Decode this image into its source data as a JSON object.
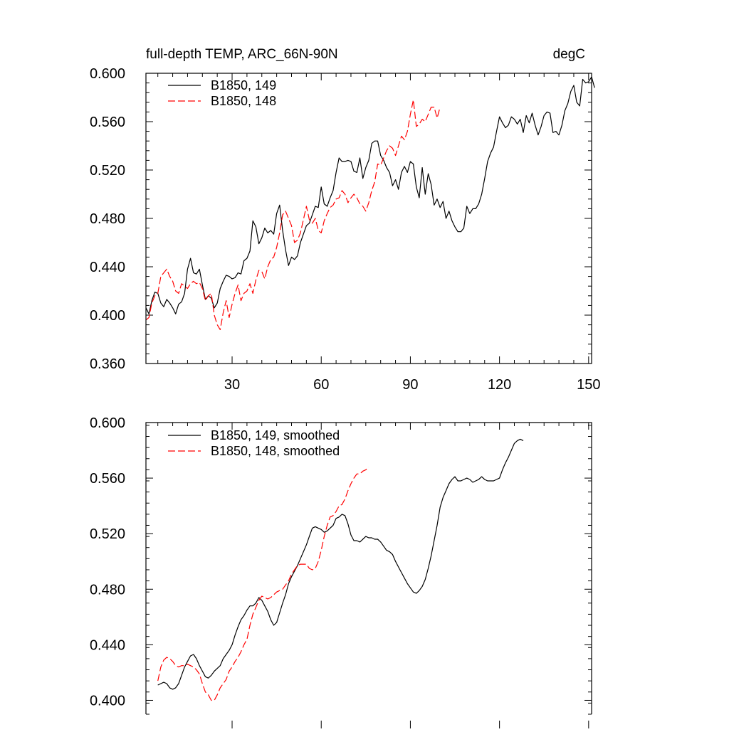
{
  "chart_data": [
    {
      "type": "line",
      "title": "full-depth TEMP, ARC_66N-90N",
      "units": "degC",
      "xlabel": "",
      "ylabel": "",
      "xlim": [
        1,
        151
      ],
      "ylim": [
        0.36,
        0.6
      ],
      "x_tick_labels": [
        "30",
        "60",
        "90",
        "120",
        "150"
      ],
      "y_tick_labels": [
        "0.360",
        "0.400",
        "0.440",
        "0.480",
        "0.520",
        "0.560",
        "0.600"
      ],
      "grid": false,
      "legend_position": "top-left",
      "series": [
        {
          "name": "B1850, 149",
          "color": "#000000",
          "style": "solid",
          "x_start": 1,
          "values": [
            0.406,
            0.401,
            0.412,
            0.419,
            0.418,
            0.41,
            0.407,
            0.413,
            0.41,
            0.406,
            0.401,
            0.409,
            0.411,
            0.418,
            0.438,
            0.447,
            0.435,
            0.434,
            0.438,
            0.425,
            0.413,
            0.416,
            0.414,
            0.406,
            0.41,
            0.422,
            0.428,
            0.433,
            0.432,
            0.43,
            0.431,
            0.435,
            0.434,
            0.445,
            0.447,
            0.453,
            0.478,
            0.473,
            0.459,
            0.464,
            0.472,
            0.468,
            0.47,
            0.467,
            0.484,
            0.491,
            0.47,
            0.454,
            0.441,
            0.448,
            0.446,
            0.449,
            0.46,
            0.467,
            0.474,
            0.476,
            0.483,
            0.49,
            0.489,
            0.506,
            0.492,
            0.49,
            0.497,
            0.503,
            0.518,
            0.53,
            0.527,
            0.527,
            0.528,
            0.527,
            0.519,
            0.518,
            0.53,
            0.513,
            0.522,
            0.528,
            0.542,
            0.544,
            0.544,
            0.532,
            0.528,
            0.522,
            0.518,
            0.507,
            0.512,
            0.504,
            0.518,
            0.523,
            0.518,
            0.527,
            0.525,
            0.506,
            0.497,
            0.522,
            0.5,
            0.517,
            0.508,
            0.491,
            0.496,
            0.489,
            0.494,
            0.48,
            0.486,
            0.478,
            0.473,
            0.469,
            0.469,
            0.472,
            0.49,
            0.484,
            0.488,
            0.488,
            0.492,
            0.5,
            0.513,
            0.527,
            0.534,
            0.539,
            0.552,
            0.564,
            0.559,
            0.555,
            0.557,
            0.564,
            0.562,
            0.558,
            0.562,
            0.551,
            0.565,
            0.559,
            0.567,
            0.557,
            0.549,
            0.556,
            0.565,
            0.568,
            0.567,
            0.551,
            0.552,
            0.549,
            0.557,
            0.569,
            0.575,
            0.585,
            0.59,
            0.576,
            0.573,
            0.595,
            0.592,
            0.593,
            0.597,
            0.588
          ]
        },
        {
          "name": "B1850, 148",
          "color": "#ff0000",
          "style": "dashed",
          "x_start": 1,
          "values": [
            0.396,
            0.398,
            0.41,
            0.416,
            0.418,
            0.432,
            0.435,
            0.438,
            0.432,
            0.428,
            0.42,
            0.418,
            0.426,
            0.424,
            0.422,
            0.426,
            0.428,
            0.426,
            0.427,
            0.422,
            0.412,
            0.416,
            0.418,
            0.4,
            0.392,
            0.388,
            0.402,
            0.412,
            0.398,
            0.409,
            0.418,
            0.425,
            0.412,
            0.418,
            0.42,
            0.426,
            0.418,
            0.429,
            0.437,
            0.436,
            0.43,
            0.44,
            0.446,
            0.448,
            0.456,
            0.468,
            0.483,
            0.486,
            0.48,
            0.474,
            0.46,
            0.462,
            0.468,
            0.479,
            0.49,
            0.479,
            0.476,
            0.48,
            0.47,
            0.468,
            0.478,
            0.484,
            0.489,
            0.491,
            0.496,
            0.497,
            0.503,
            0.5,
            0.493,
            0.497,
            0.5,
            0.497,
            0.492,
            0.49,
            0.486,
            0.493,
            0.503,
            0.51,
            0.525,
            0.524,
            0.53,
            0.536,
            0.54,
            0.538,
            0.532,
            0.54,
            0.548,
            0.545,
            0.552,
            0.566,
            0.578,
            0.556,
            0.558,
            0.562,
            0.56,
            0.566,
            0.572,
            0.572,
            0.563,
            0.572
          ]
        }
      ]
    },
    {
      "type": "line",
      "title": "",
      "xlabel": "",
      "ylabel": "",
      "xlim": [
        1,
        151
      ],
      "ylim": [
        0.39,
        0.6
      ],
      "y_tick_labels": [
        "0.400",
        "0.440",
        "0.480",
        "0.520",
        "0.560",
        "0.600"
      ],
      "grid": false,
      "legend_position": "top-left",
      "series": [
        {
          "name": "B1850, 149, smoothed",
          "color": "#000000",
          "style": "solid",
          "x_start": 5,
          "values": [
            0.411,
            0.412,
            0.413,
            0.412,
            0.409,
            0.408,
            0.409,
            0.412,
            0.418,
            0.424,
            0.428,
            0.432,
            0.433,
            0.43,
            0.425,
            0.421,
            0.417,
            0.416,
            0.418,
            0.421,
            0.423,
            0.425,
            0.43,
            0.433,
            0.436,
            0.44,
            0.447,
            0.453,
            0.458,
            0.461,
            0.465,
            0.468,
            0.468,
            0.47,
            0.474,
            0.472,
            0.468,
            0.464,
            0.458,
            0.454,
            0.456,
            0.463,
            0.47,
            0.476,
            0.484,
            0.489,
            0.493,
            0.497,
            0.502,
            0.507,
            0.512,
            0.518,
            0.524,
            0.525,
            0.524,
            0.523,
            0.521,
            0.522,
            0.524,
            0.526,
            0.531,
            0.532,
            0.534,
            0.533,
            0.527,
            0.519,
            0.515,
            0.515,
            0.514,
            0.516,
            0.518,
            0.517,
            0.517,
            0.516,
            0.516,
            0.514,
            0.511,
            0.508,
            0.507,
            0.505,
            0.5,
            0.496,
            0.492,
            0.488,
            0.484,
            0.481,
            0.478,
            0.477,
            0.479,
            0.482,
            0.487,
            0.495,
            0.504,
            0.515,
            0.526,
            0.539,
            0.546,
            0.551,
            0.556,
            0.559,
            0.561,
            0.558,
            0.558,
            0.559,
            0.56,
            0.559,
            0.557,
            0.558,
            0.559,
            0.561,
            0.559,
            0.558,
            0.558,
            0.558,
            0.559,
            0.56,
            0.566,
            0.571,
            0.575,
            0.58,
            0.585,
            0.587,
            0.588,
            0.587
          ]
        },
        {
          "name": "B1850, 148, smoothed",
          "color": "#ff0000",
          "style": "dashed",
          "x_start": 5,
          "values": [
            0.414,
            0.424,
            0.429,
            0.431,
            0.43,
            0.428,
            0.425,
            0.424,
            0.425,
            0.425,
            0.426,
            0.425,
            0.424,
            0.422,
            0.419,
            0.412,
            0.406,
            0.404,
            0.4,
            0.4,
            0.404,
            0.409,
            0.412,
            0.415,
            0.421,
            0.424,
            0.428,
            0.431,
            0.435,
            0.44,
            0.444,
            0.454,
            0.462,
            0.467,
            0.472,
            0.475,
            0.474,
            0.473,
            0.474,
            0.476,
            0.478,
            0.479,
            0.48,
            0.483,
            0.486,
            0.491,
            0.494,
            0.497,
            0.498,
            0.498,
            0.498,
            0.495,
            0.494,
            0.495,
            0.5,
            0.508,
            0.518,
            0.526,
            0.532,
            0.533,
            0.536,
            0.54,
            0.541,
            0.545,
            0.551,
            0.556,
            0.56,
            0.563,
            0.563,
            0.565,
            0.566,
            0.568
          ]
        }
      ]
    }
  ],
  "legend_top": [
    {
      "label": "B1850, 149",
      "color": "#000000",
      "style": "solid"
    },
    {
      "label": "B1850, 148",
      "color": "#ff0000",
      "style": "dashed"
    }
  ],
  "legend_bottom": [
    {
      "label": "B1850, 149, smoothed",
      "color": "#000000",
      "style": "solid"
    },
    {
      "label": "B1850, 148, smoothed",
      "color": "#ff0000",
      "style": "dashed"
    }
  ]
}
